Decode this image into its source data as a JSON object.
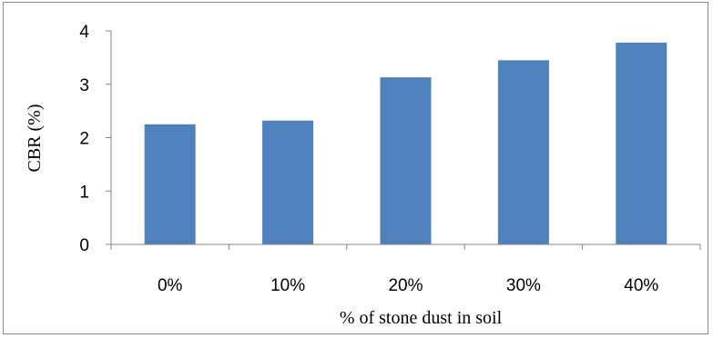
{
  "chart_data": {
    "type": "bar",
    "categories": [
      "0%",
      "10%",
      "20%",
      "30%",
      "40%"
    ],
    "values": [
      2.25,
      2.32,
      3.13,
      3.45,
      3.78
    ],
    "title": "",
    "xlabel": "% of stone dust in soil",
    "ylabel": "CBR (%)",
    "ylim": [
      0,
      4
    ],
    "yticks": [
      "0",
      "1",
      "2",
      "3",
      "4"
    ],
    "grid": false,
    "legend": "none",
    "bar_color": "#4f81bd",
    "axis_color": "#868686"
  }
}
